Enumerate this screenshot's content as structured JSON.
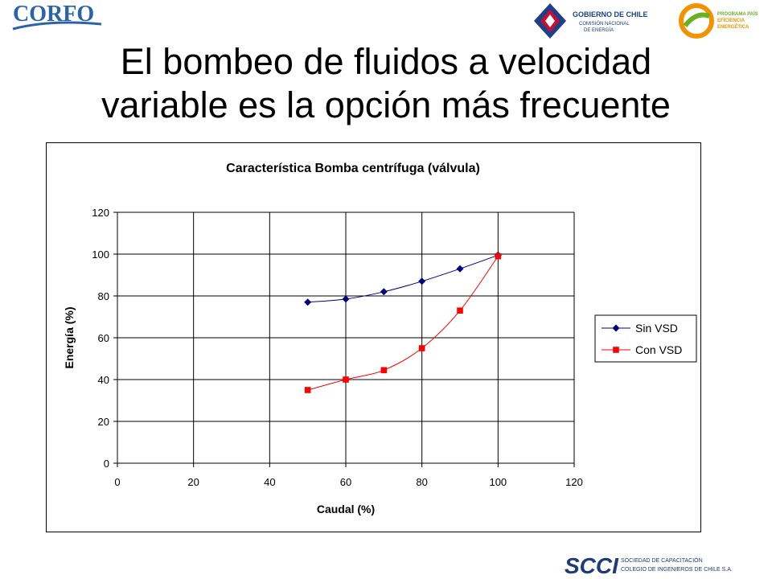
{
  "slide": {
    "title_line1": "El bombeo de fluidos a velocidad",
    "title_line2": "variable es la opción más frecuente"
  },
  "logos": {
    "corfo": "CORFO",
    "gobierno_line1": "GOBIERNO DE CHILE",
    "gobierno_line2": "COMISIÓN NACIONAL",
    "gobierno_line3": "DE ENERGÍA",
    "programa_line1": "PROGRAMA PAÍS",
    "programa_line2": "EFICIENCIA",
    "programa_line3": "ENERGÉTICA",
    "scci_mark": "SCCI",
    "scci_line1": "SOCIEDAD DE CAPACITACIÓN",
    "scci_line2": "COLEGIO DE INGENIEROS DE CHILE S.A."
  },
  "chart_data": {
    "type": "scatter",
    "title": "Característica Bomba centrífuga (válvula)",
    "xlabel": "Caudal (%)",
    "ylabel": "Energía (%)",
    "xlim": [
      0,
      120
    ],
    "ylim": [
      0,
      120
    ],
    "xticks": [
      0,
      20,
      40,
      60,
      80,
      100,
      120
    ],
    "yticks": [
      0,
      20,
      40,
      60,
      80,
      100,
      120
    ],
    "grid": true,
    "legend_position": "right",
    "series": [
      {
        "name": "Sin VSD",
        "color": "#000080",
        "marker": "diamond",
        "x": [
          50,
          60,
          70,
          80,
          90,
          100
        ],
        "y": [
          77,
          78.5,
          82,
          87,
          93,
          99.5
        ]
      },
      {
        "name": "Con VSD",
        "color": "#ff0000",
        "marker": "square",
        "x": [
          50,
          60,
          70,
          80,
          90,
          100
        ],
        "y": [
          35,
          40,
          44.5,
          55,
          73,
          99
        ]
      }
    ]
  }
}
